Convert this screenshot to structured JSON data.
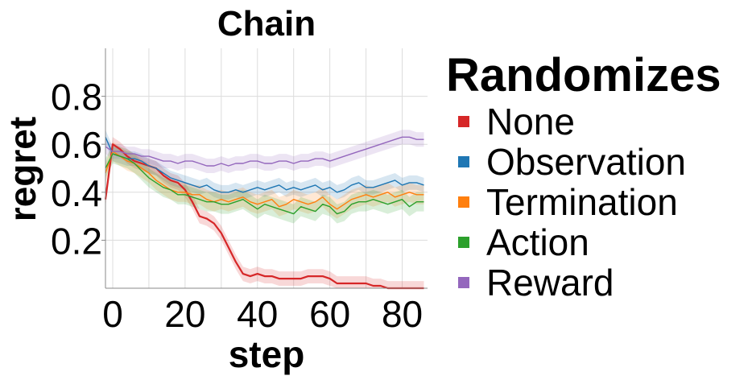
{
  "chart_data": {
    "type": "line",
    "title": "Chain",
    "xlabel": "step",
    "ylabel": "regret",
    "xlim": [
      -2,
      87
    ],
    "ylim": [
      0,
      1
    ],
    "x_ticks": [
      0,
      20,
      40,
      60,
      80
    ],
    "x_tick_labels": [
      "0",
      "20",
      "40",
      "60",
      "80"
    ],
    "y_ticks": [
      0.2,
      0.4,
      0.6,
      0.8
    ],
    "y_tick_labels": [
      "0.2",
      "0.4",
      "0.6",
      "0.8"
    ],
    "grid": true,
    "legend": {
      "title": "Randomizes",
      "placement": "right"
    },
    "series": [
      {
        "name": "None",
        "color": "#d62728",
        "x": [
          -2,
          0,
          2,
          4,
          6,
          8,
          10,
          12,
          14,
          16,
          18,
          20,
          22,
          24,
          26,
          28,
          30,
          32,
          34,
          36,
          38,
          40,
          42,
          44,
          46,
          48,
          50,
          52,
          54,
          56,
          58,
          60,
          62,
          64,
          66,
          68,
          70,
          72,
          74,
          76,
          78,
          80,
          82,
          84,
          86
        ],
        "y": [
          0.37,
          0.6,
          0.58,
          0.55,
          0.53,
          0.52,
          0.51,
          0.5,
          0.47,
          0.45,
          0.44,
          0.41,
          0.36,
          0.3,
          0.29,
          0.27,
          0.23,
          0.17,
          0.11,
          0.06,
          0.05,
          0.06,
          0.05,
          0.05,
          0.04,
          0.04,
          0.04,
          0.04,
          0.05,
          0.05,
          0.05,
          0.04,
          0.02,
          0.02,
          0.02,
          0.02,
          0.02,
          0.01,
          0.01,
          0.0,
          0.0,
          0.0,
          0.0,
          0.0,
          0.0
        ],
        "band": 0.03
      },
      {
        "name": "Observation",
        "color": "#1f77b4",
        "x": [
          -2,
          0,
          2,
          4,
          6,
          8,
          10,
          12,
          14,
          16,
          18,
          20,
          22,
          24,
          26,
          28,
          30,
          32,
          34,
          36,
          38,
          40,
          42,
          44,
          46,
          48,
          50,
          52,
          54,
          56,
          58,
          60,
          62,
          64,
          66,
          68,
          70,
          72,
          74,
          76,
          78,
          80,
          82,
          84,
          86
        ],
        "y": [
          0.63,
          0.56,
          0.55,
          0.54,
          0.54,
          0.53,
          0.51,
          0.5,
          0.48,
          0.46,
          0.45,
          0.44,
          0.43,
          0.42,
          0.43,
          0.41,
          0.4,
          0.4,
          0.41,
          0.4,
          0.41,
          0.42,
          0.41,
          0.42,
          0.43,
          0.41,
          0.42,
          0.41,
          0.42,
          0.43,
          0.41,
          0.42,
          0.4,
          0.41,
          0.43,
          0.44,
          0.42,
          0.42,
          0.43,
          0.44,
          0.45,
          0.43,
          0.44,
          0.44,
          0.43
        ],
        "band": 0.03
      },
      {
        "name": "Termination",
        "color": "#ff7f0e",
        "x": [
          -2,
          0,
          2,
          4,
          6,
          8,
          10,
          12,
          14,
          16,
          18,
          20,
          22,
          24,
          26,
          28,
          30,
          32,
          34,
          36,
          38,
          40,
          42,
          44,
          46,
          48,
          50,
          52,
          54,
          56,
          58,
          60,
          62,
          64,
          66,
          68,
          70,
          72,
          74,
          76,
          78,
          80,
          82,
          84,
          86
        ],
        "y": [
          0.48,
          0.57,
          0.55,
          0.53,
          0.52,
          0.5,
          0.48,
          0.45,
          0.43,
          0.41,
          0.4,
          0.4,
          0.39,
          0.39,
          0.37,
          0.36,
          0.37,
          0.36,
          0.37,
          0.38,
          0.36,
          0.35,
          0.36,
          0.37,
          0.34,
          0.35,
          0.37,
          0.36,
          0.35,
          0.36,
          0.38,
          0.35,
          0.33,
          0.35,
          0.37,
          0.38,
          0.39,
          0.38,
          0.39,
          0.4,
          0.38,
          0.39,
          0.4,
          0.39,
          0.39
        ],
        "band": 0.04
      },
      {
        "name": "Action",
        "color": "#2ca02c",
        "x": [
          -2,
          0,
          2,
          4,
          6,
          8,
          10,
          12,
          14,
          16,
          18,
          20,
          22,
          24,
          26,
          28,
          30,
          32,
          34,
          36,
          38,
          40,
          42,
          44,
          46,
          48,
          50,
          52,
          54,
          56,
          58,
          60,
          62,
          64,
          66,
          68,
          70,
          72,
          74,
          76,
          78,
          80,
          82,
          84,
          86
        ],
        "y": [
          0.5,
          0.56,
          0.55,
          0.54,
          0.52,
          0.49,
          0.46,
          0.44,
          0.42,
          0.41,
          0.39,
          0.39,
          0.38,
          0.37,
          0.36,
          0.36,
          0.35,
          0.35,
          0.36,
          0.37,
          0.35,
          0.33,
          0.35,
          0.34,
          0.33,
          0.32,
          0.31,
          0.34,
          0.33,
          0.32,
          0.35,
          0.34,
          0.31,
          0.32,
          0.35,
          0.36,
          0.36,
          0.37,
          0.36,
          0.35,
          0.36,
          0.37,
          0.34,
          0.36,
          0.36
        ],
        "band": 0.04
      },
      {
        "name": "Reward",
        "color": "#9467bd",
        "x": [
          -2,
          0,
          2,
          4,
          6,
          8,
          10,
          12,
          14,
          16,
          18,
          20,
          22,
          24,
          26,
          28,
          30,
          32,
          34,
          36,
          38,
          40,
          42,
          44,
          46,
          48,
          50,
          52,
          54,
          56,
          58,
          60,
          62,
          64,
          66,
          68,
          70,
          72,
          74,
          76,
          78,
          80,
          82,
          84,
          86
        ],
        "y": [
          0.59,
          0.57,
          0.57,
          0.56,
          0.56,
          0.55,
          0.55,
          0.54,
          0.53,
          0.53,
          0.52,
          0.53,
          0.53,
          0.52,
          0.51,
          0.51,
          0.52,
          0.51,
          0.52,
          0.52,
          0.53,
          0.53,
          0.52,
          0.52,
          0.53,
          0.53,
          0.52,
          0.53,
          0.53,
          0.54,
          0.54,
          0.53,
          0.54,
          0.55,
          0.56,
          0.57,
          0.58,
          0.59,
          0.6,
          0.61,
          0.62,
          0.63,
          0.63,
          0.62,
          0.62
        ],
        "band": 0.03
      }
    ]
  }
}
